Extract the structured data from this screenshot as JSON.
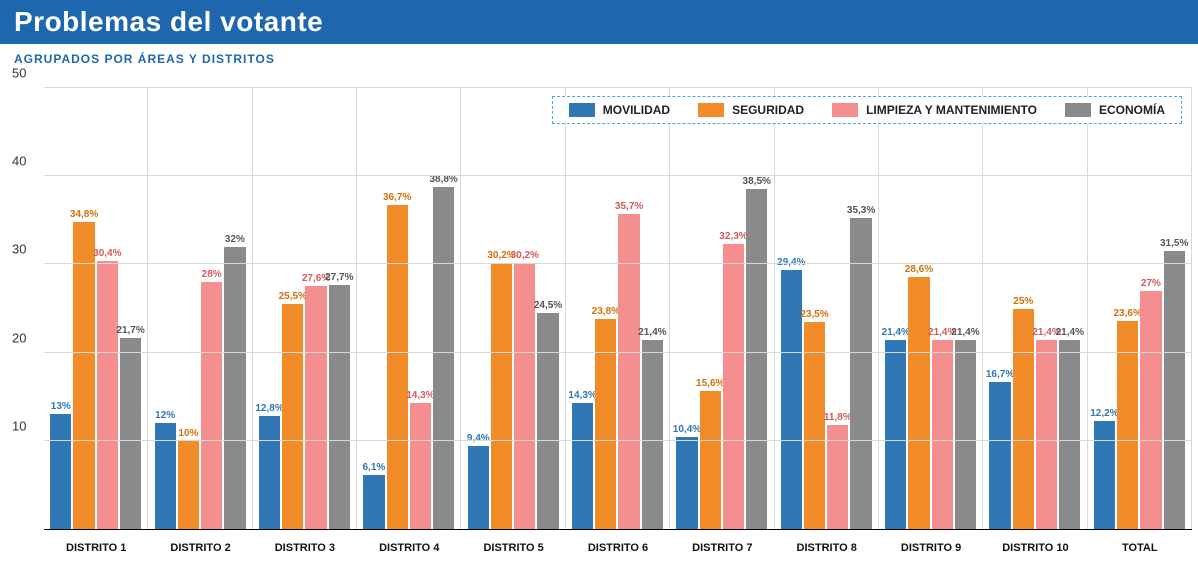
{
  "title": "Problemas del votante",
  "subtitle": "AGRUPADOS POR ÁREAS Y DISTRITOS",
  "colors": {
    "title_bg": "#1e67ae",
    "subtitle": "#1e67ae",
    "grid": "#d9d9d9",
    "legend_border": "#4aa5e2",
    "series": {
      "movilidad": "#2f78b5",
      "seguridad": "#f28c28",
      "limpieza": "#f58e8e",
      "economia": "#8a8a8a"
    },
    "value_label": {
      "movilidad": "#2f78b5",
      "seguridad": "#d36f0a",
      "limpieza": "#d35a5a",
      "economia": "#555555"
    }
  },
  "y_axis": {
    "min": 0,
    "max": 50,
    "ticks": [
      10,
      20,
      30,
      40,
      50
    ]
  },
  "series": [
    {
      "key": "movilidad",
      "label": "MOVILIDAD"
    },
    {
      "key": "seguridad",
      "label": "SEGURIDAD"
    },
    {
      "key": "limpieza",
      "label": "LIMPIEZA Y MANTENIMIENTO"
    },
    {
      "key": "economia",
      "label": "ECONOMÍA"
    }
  ],
  "groups": [
    {
      "label": "DISTRITO 1",
      "values": {
        "movilidad": 13.0,
        "seguridad": 34.8,
        "limpieza": 30.4,
        "economia": 21.7
      },
      "display": {
        "movilidad": "13%",
        "seguridad": "34,8%",
        "limpieza": "30,4%",
        "economia": "21,7%"
      }
    },
    {
      "label": "DISTRITO 2",
      "values": {
        "movilidad": 12.0,
        "seguridad": 10.0,
        "limpieza": 28.0,
        "economia": 32.0
      },
      "display": {
        "movilidad": "12%",
        "seguridad": "10%",
        "limpieza": "28%",
        "economia": "32%"
      }
    },
    {
      "label": "DISTRITO 3",
      "values": {
        "movilidad": 12.8,
        "seguridad": 25.5,
        "limpieza": 27.6,
        "economia": 27.7
      },
      "display": {
        "movilidad": "12,8%",
        "seguridad": "25,5%",
        "limpieza": "27,6%",
        "economia": "27,7%"
      }
    },
    {
      "label": "DISTRITO 4",
      "values": {
        "movilidad": 6.1,
        "seguridad": 36.7,
        "limpieza": 14.3,
        "economia": 38.8
      },
      "display": {
        "movilidad": "6,1%",
        "seguridad": "36,7%",
        "limpieza": "14,3%",
        "economia": "38,8%"
      }
    },
    {
      "label": "DISTRITO 5",
      "values": {
        "movilidad": 9.4,
        "seguridad": 30.2,
        "limpieza": 30.2,
        "economia": 24.5
      },
      "display": {
        "movilidad": "9,4%",
        "seguridad": "30,2%",
        "limpieza": "30,2%",
        "economia": "24,5%"
      }
    },
    {
      "label": "DISTRITO 6",
      "values": {
        "movilidad": 14.3,
        "seguridad": 23.8,
        "limpieza": 35.7,
        "economia": 21.4
      },
      "display": {
        "movilidad": "14,3%",
        "seguridad": "23,8%",
        "limpieza": "35,7%",
        "economia": "21,4%"
      }
    },
    {
      "label": "DISTRITO 7",
      "values": {
        "movilidad": 10.4,
        "seguridad": 15.6,
        "limpieza": 32.3,
        "economia": 38.5
      },
      "display": {
        "movilidad": "10,4%",
        "seguridad": "15,6%",
        "limpieza": "32,3%",
        "economia": "38,5%"
      }
    },
    {
      "label": "DISTRITO 8",
      "values": {
        "movilidad": 29.4,
        "seguridad": 23.5,
        "limpieza": 11.8,
        "economia": 35.3
      },
      "display": {
        "movilidad": "29,4%",
        "seguridad": "23,5%",
        "limpieza": "11,8%",
        "economia": "35,3%"
      }
    },
    {
      "label": "DISTRITO 9",
      "values": {
        "movilidad": 21.4,
        "seguridad": 28.6,
        "limpieza": 21.4,
        "economia": 21.4
      },
      "display": {
        "movilidad": "21,4%",
        "seguridad": "28,6%",
        "limpieza": "21,4%",
        "economia": "21,4%"
      }
    },
    {
      "label": "DISTRITO 10",
      "values": {
        "movilidad": 16.7,
        "seguridad": 25.0,
        "limpieza": 21.4,
        "economia": 21.4
      },
      "display": {
        "movilidad": "16,7%",
        "seguridad": "25%",
        "limpieza": "21,4%",
        "economia": "21,4%"
      }
    },
    {
      "label": "TOTAL",
      "values": {
        "movilidad": 12.2,
        "seguridad": 23.6,
        "limpieza": 27.0,
        "economia": 31.5
      },
      "display": {
        "movilidad": "12,2%",
        "seguridad": "23,6%",
        "limpieza": "27%",
        "economia": "31,5%"
      }
    }
  ]
}
